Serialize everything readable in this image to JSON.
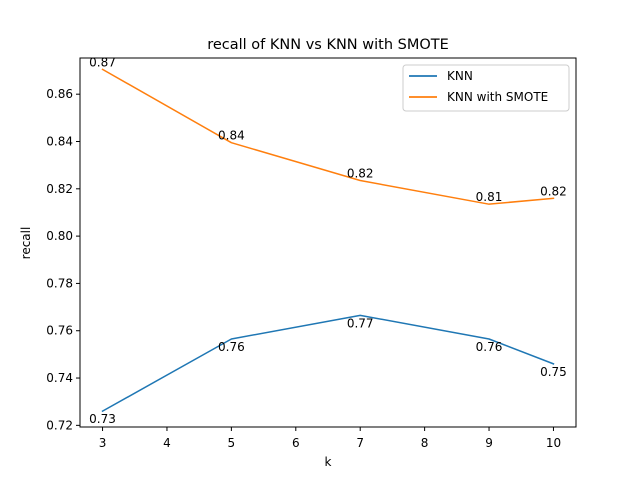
{
  "chart_data": {
    "type": "line",
    "title": "recall of KNN vs KNN with SMOTE",
    "xlabel": "k",
    "ylabel": "recall",
    "x": [
      3,
      5,
      7,
      9,
      10
    ],
    "xlim": [
      2.65,
      10.35
    ],
    "ylim": [
      0.7193,
      0.8753
    ],
    "xticks": [
      3,
      4,
      5,
      6,
      7,
      8,
      9,
      10
    ],
    "yticks": [
      0.72,
      0.74,
      0.76,
      0.78,
      0.8,
      0.82,
      0.84,
      0.86
    ],
    "ytick_labels": [
      "0.72",
      "0.74",
      "0.76",
      "0.78",
      "0.80",
      "0.82",
      "0.84",
      "0.86"
    ],
    "grid": false,
    "legend_position": "top-right",
    "series": [
      {
        "name": "KNN",
        "color": "#1f77b4",
        "values": [
          0.726,
          0.7565,
          0.7665,
          0.7565,
          0.746
        ],
        "labels": [
          "0.73",
          "0.76",
          "0.77",
          "0.76",
          "0.75"
        ],
        "label_placement": "below"
      },
      {
        "name": "KNN with SMOTE",
        "color": "#ff7f0e",
        "values": [
          0.8705,
          0.8395,
          0.8235,
          0.8135,
          0.816
        ],
        "labels": [
          "0.87",
          "0.84",
          "0.82",
          "0.81",
          "0.82"
        ],
        "label_placement": "above"
      }
    ]
  }
}
